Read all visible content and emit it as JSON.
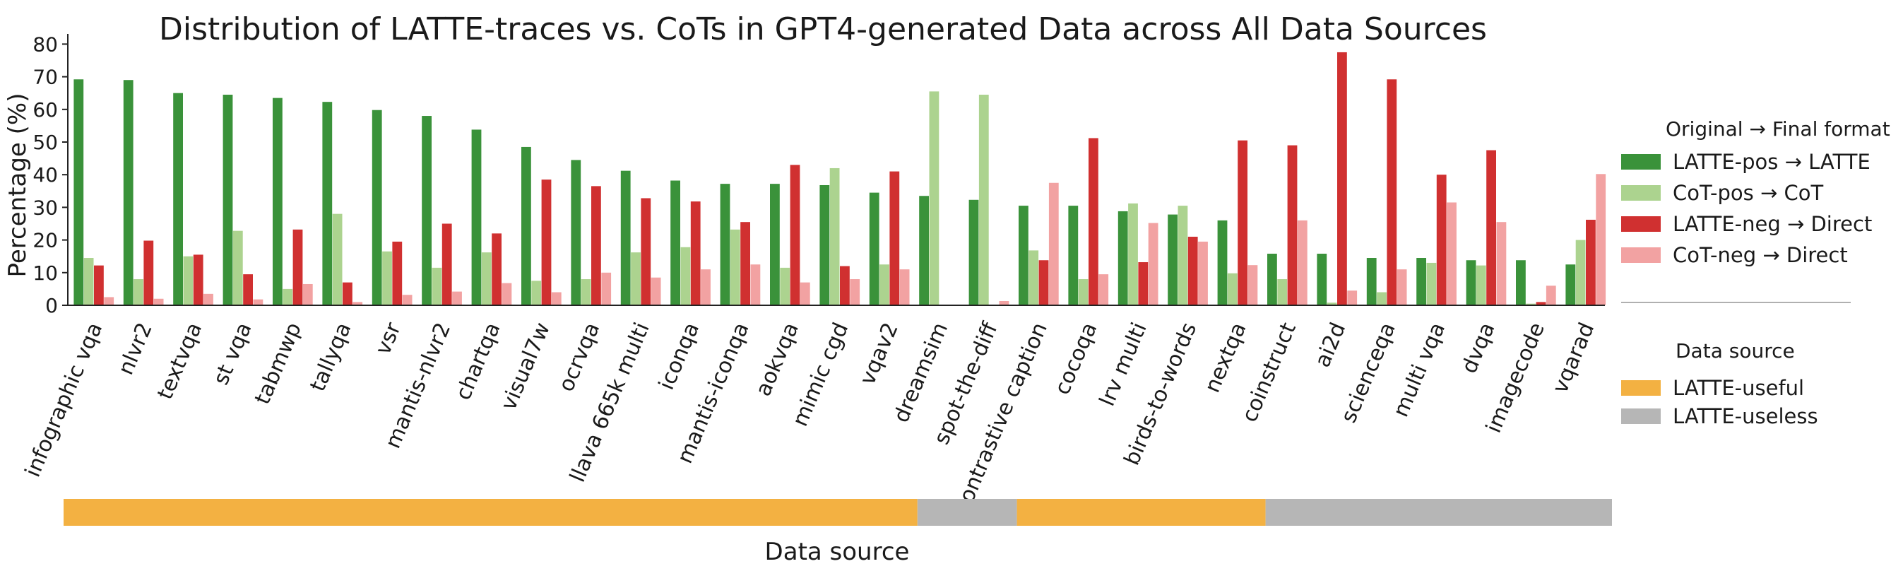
{
  "chart_data": {
    "type": "bar",
    "title": "Distribution of LATTE-traces vs. CoTs in GPT4-generated Data across All Data Sources",
    "xlabel": "Data source",
    "ylabel": "Percentage (%)",
    "ylim": [
      0,
      82
    ],
    "yticks": [
      0,
      10,
      20,
      30,
      40,
      50,
      60,
      70,
      80
    ],
    "grid": false,
    "categories": [
      "infographic vqa",
      "nlvr2",
      "textvqa",
      "st vqa",
      "tabmwp",
      "tallyqa",
      "vsr",
      "mantis-nlvr2",
      "chartqa",
      "visual7w",
      "ocrvqa",
      "llava 665k multi",
      "iconqa",
      "mantis-iconqa",
      "aokvqa",
      "mimic cgd",
      "vqav2",
      "dreamsim",
      "spot-the-diff",
      "contrastive caption",
      "cocoqa",
      "lrv multi",
      "birds-to-words",
      "nextqa",
      "coinstruct",
      "ai2d",
      "scienceqa",
      "multi vqa",
      "dvqa",
      "imagecode",
      "vqarad"
    ],
    "series": [
      {
        "name": "LATTE-pos → LATTE",
        "color": "#3a923a",
        "values": [
          69.2,
          69.0,
          65.0,
          64.5,
          63.5,
          62.3,
          59.8,
          58.0,
          53.8,
          48.5,
          44.5,
          41.2,
          38.2,
          37.2,
          37.2,
          36.8,
          34.5,
          33.5,
          32.3,
          30.5,
          30.5,
          28.8,
          27.8,
          26.0,
          15.8,
          15.8,
          14.5,
          14.5,
          13.8,
          13.8,
          12.5
        ]
      },
      {
        "name": "CoT-pos → CoT",
        "color": "#acd38f",
        "values": [
          14.5,
          8.0,
          15.0,
          22.8,
          5.0,
          28.0,
          16.5,
          11.5,
          16.2,
          7.5,
          8.0,
          16.2,
          17.8,
          23.2,
          11.5,
          42.0,
          12.5,
          65.5,
          64.5,
          16.8,
          8.0,
          31.2,
          30.5,
          9.8,
          8.0,
          0.8,
          4.0,
          13.0,
          12.2,
          0.5,
          20.0
        ]
      },
      {
        "name": "LATTE-neg → Direct",
        "color": "#d03030",
        "values": [
          12.2,
          19.8,
          15.5,
          9.5,
          23.2,
          7.0,
          19.5,
          25.0,
          22.0,
          38.5,
          36.5,
          32.8,
          31.8,
          25.5,
          43.0,
          12.0,
          41.0,
          0,
          0,
          13.8,
          51.2,
          13.2,
          21.0,
          50.5,
          49.0,
          77.5,
          69.2,
          40.0,
          47.5,
          1.0,
          26.2
        ]
      },
      {
        "name": "CoT-neg → Direct",
        "color": "#f2a2a2",
        "values": [
          2.5,
          2.0,
          3.5,
          1.8,
          6.5,
          1.0,
          3.2,
          4.2,
          6.8,
          4.0,
          10.0,
          8.5,
          11.0,
          12.5,
          7.0,
          8.0,
          11.0,
          0,
          1.3,
          37.5,
          9.5,
          25.2,
          19.5,
          12.3,
          26.0,
          4.5,
          11.0,
          31.5,
          25.5,
          6.0,
          40.2
        ]
      }
    ],
    "legend": {
      "position": "right",
      "format_title": "Original → Final format",
      "source_title": "Data source",
      "source_entries": [
        {
          "name": "LATTE-useful",
          "color": "#f3b142"
        },
        {
          "name": "LATTE-useless",
          "color": "#b6b6b6"
        }
      ]
    },
    "source_strip": [
      {
        "label": "LATTE-useful",
        "from": 0,
        "to": 16
      },
      {
        "label": "LATTE-useless",
        "from": 17,
        "to": 18
      },
      {
        "label": "LATTE-useful",
        "from": 19,
        "to": 23
      },
      {
        "label": "LATTE-useless",
        "from": 24,
        "to": 30
      }
    ]
  }
}
